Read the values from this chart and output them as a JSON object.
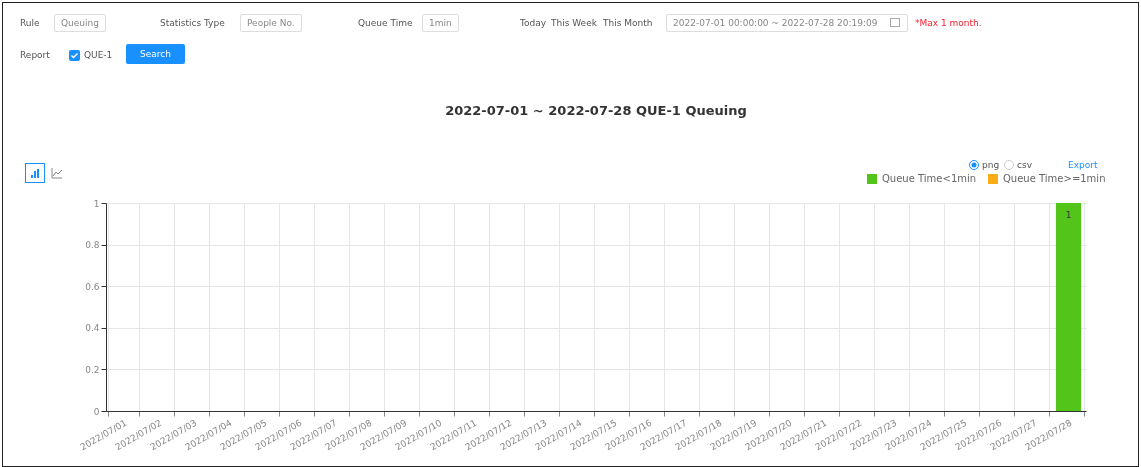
{
  "chart_data": {
    "type": "bar",
    "title": "2022-07-01 ~ 2022-07-28  QUE-1  Queuing",
    "categories": [
      "2022/07/01",
      "2022/07/02",
      "2022/07/03",
      "2022/07/04",
      "2022/07/05",
      "2022/07/06",
      "2022/07/07",
      "2022/07/08",
      "2022/07/09",
      "2022/07/10",
      "2022/07/11",
      "2022/07/12",
      "2022/07/13",
      "2022/07/14",
      "2022/07/15",
      "2022/07/16",
      "2022/07/17",
      "2022/07/18",
      "2022/07/19",
      "2022/07/20",
      "2022/07/21",
      "2022/07/22",
      "2022/07/23",
      "2022/07/24",
      "2022/07/25",
      "2022/07/26",
      "2022/07/27",
      "2022/07/28"
    ],
    "series": [
      {
        "name": "Queue Time<1min",
        "color": "#52c41a",
        "values": [
          0,
          0,
          0,
          0,
          0,
          0,
          0,
          0,
          0,
          0,
          0,
          0,
          0,
          0,
          0,
          0,
          0,
          0,
          0,
          0,
          0,
          0,
          0,
          0,
          0,
          0,
          0,
          1
        ],
        "value_labels": [
          null,
          null,
          null,
          null,
          null,
          null,
          null,
          null,
          null,
          null,
          null,
          null,
          null,
          null,
          null,
          null,
          null,
          null,
          null,
          null,
          null,
          null,
          null,
          null,
          null,
          null,
          null,
          "1"
        ]
      },
      {
        "name": "Queue Time>=1min",
        "color": "#faad14",
        "values": [
          0,
          0,
          0,
          0,
          0,
          0,
          0,
          0,
          0,
          0,
          0,
          0,
          0,
          0,
          0,
          0,
          0,
          0,
          0,
          0,
          0,
          0,
          0,
          0,
          0,
          0,
          0,
          0
        ]
      }
    ],
    "ylim": [
      0,
      1
    ],
    "yticks": [
      0,
      0.2,
      0.4,
      0.6,
      0.8,
      1
    ],
    "grid": true,
    "legend": "top right",
    "annotations": [
      "Rule",
      "Queuing",
      "Statistics Type",
      "People No.",
      "Queue Time",
      "1min",
      "Today",
      "This Week",
      "This Month",
      "2022-07-01 00:00:00 ~ 2022-07-28 20:19:09",
      "*Max 1 month.",
      "Report",
      "QUE-1",
      "Search",
      "png",
      "csv",
      "Export"
    ]
  }
}
